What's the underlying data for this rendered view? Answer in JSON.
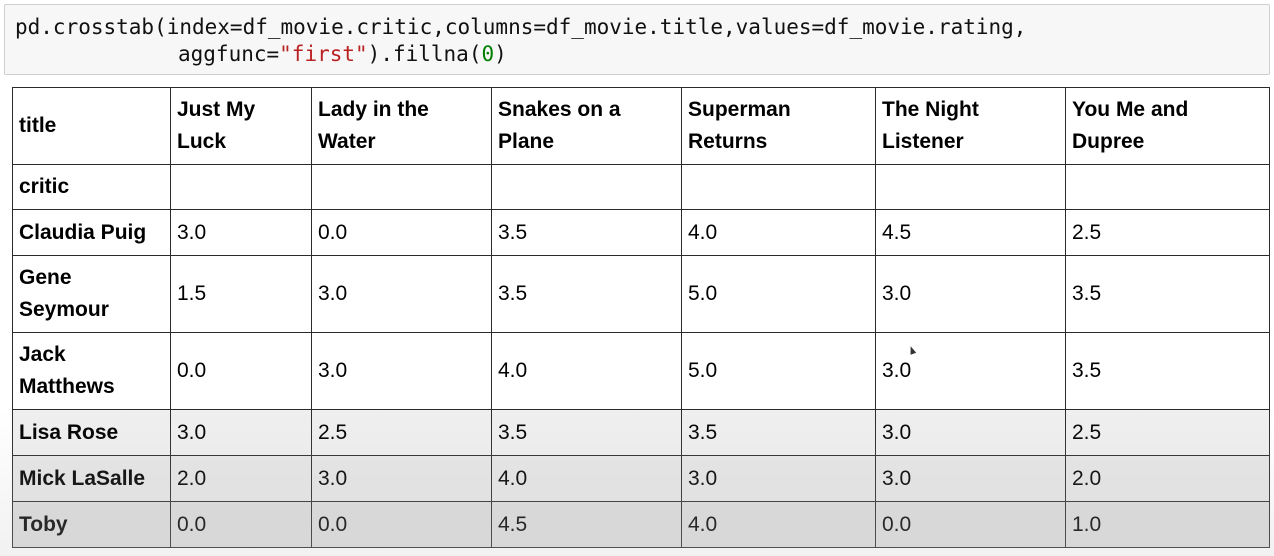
{
  "code": {
    "line1": "pd.crosstab(index=df_movie.critic,columns=df_movie.title,values=df_movie.rating,",
    "line2_pre": "aggfunc=",
    "line2_str": "\"first\"",
    "line2_mid": ").fillna(",
    "line2_num": "0",
    "line2_post": ")"
  },
  "table": {
    "columns_name": "title",
    "index_name": "critic",
    "columns": [
      "Just My Luck",
      "Lady in the Water",
      "Snakes on a Plane",
      "Superman Returns",
      "The Night Listener",
      "You Me and Dupree"
    ],
    "rows": [
      {
        "critic": "Claudia Puig",
        "values": [
          "3.0",
          "0.0",
          "3.5",
          "4.0",
          "4.5",
          "2.5"
        ]
      },
      {
        "critic": "Gene Seymour",
        "values": [
          "1.5",
          "3.0",
          "3.5",
          "5.0",
          "3.0",
          "3.5"
        ]
      },
      {
        "critic": "Jack Matthews",
        "values": [
          "0.0",
          "3.0",
          "4.0",
          "5.0",
          "3.0",
          "3.5"
        ]
      },
      {
        "critic": "Lisa Rose",
        "values": [
          "3.0",
          "2.5",
          "3.5",
          "3.5",
          "3.0",
          "2.5"
        ]
      },
      {
        "critic": "Mick LaSalle",
        "values": [
          "2.0",
          "3.0",
          "4.0",
          "3.0",
          "3.0",
          "2.0"
        ]
      },
      {
        "critic": "Toby",
        "values": [
          "0.0",
          "0.0",
          "4.5",
          "4.0",
          "0.0",
          "1.0"
        ]
      }
    ]
  }
}
